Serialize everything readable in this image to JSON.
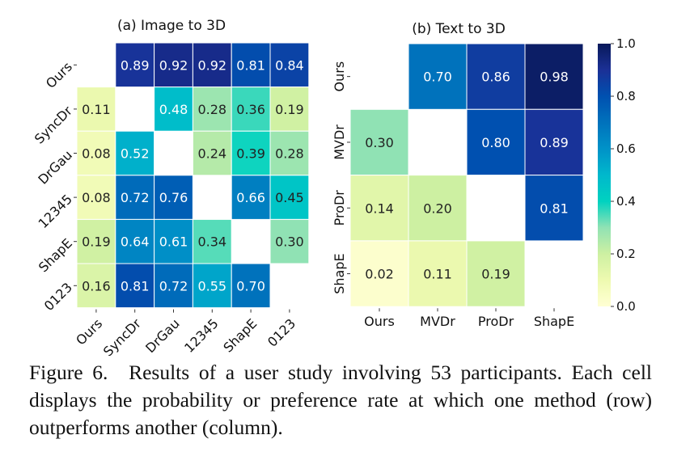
{
  "chart_data": [
    {
      "type": "heatmap",
      "title": "(a) Image to 3D",
      "rows": [
        "Ours",
        "SyncDr",
        "DrGau",
        "12345",
        "ShapE",
        "0123"
      ],
      "columns": [
        "Ours",
        "SyncDr",
        "DrGau",
        "12345",
        "ShapE",
        "0123"
      ],
      "values": [
        [
          null,
          0.89,
          0.92,
          0.92,
          0.81,
          0.84
        ],
        [
          0.11,
          null,
          0.48,
          0.28,
          0.36,
          0.19
        ],
        [
          0.08,
          0.52,
          null,
          0.24,
          0.39,
          0.28
        ],
        [
          0.08,
          0.72,
          0.76,
          null,
          0.66,
          0.45
        ],
        [
          0.19,
          0.64,
          0.61,
          0.34,
          null,
          0.3
        ],
        [
          0.16,
          0.81,
          0.72,
          0.55,
          0.7,
          null
        ]
      ],
      "colormap": "YlGnBu",
      "vlim": [
        0,
        1
      ]
    },
    {
      "type": "heatmap",
      "title": "(b) Text to 3D",
      "rows": [
        "Ours",
        "MVDr",
        "ProDr",
        "ShapE"
      ],
      "columns": [
        "Ours",
        "MVDr",
        "ProDr",
        "ShapE"
      ],
      "values": [
        [
          null,
          0.7,
          0.86,
          0.98
        ],
        [
          0.3,
          null,
          0.8,
          0.89
        ],
        [
          0.14,
          0.2,
          null,
          0.81
        ],
        [
          0.02,
          0.11,
          0.19,
          null
        ]
      ],
      "colormap": "YlGnBu",
      "vlim": [
        0,
        1
      ],
      "colorbar": {
        "ticks": [
          "0.0",
          "0.2",
          "0.4",
          "0.6",
          "0.8",
          "1.0"
        ],
        "placement": "right"
      }
    }
  ],
  "caption": {
    "label": "Figure 6.",
    "text": "Results of a user study involving 53 participants. Each cell displays the probability or preference rate at which one method (row) outperforms another (column)."
  }
}
